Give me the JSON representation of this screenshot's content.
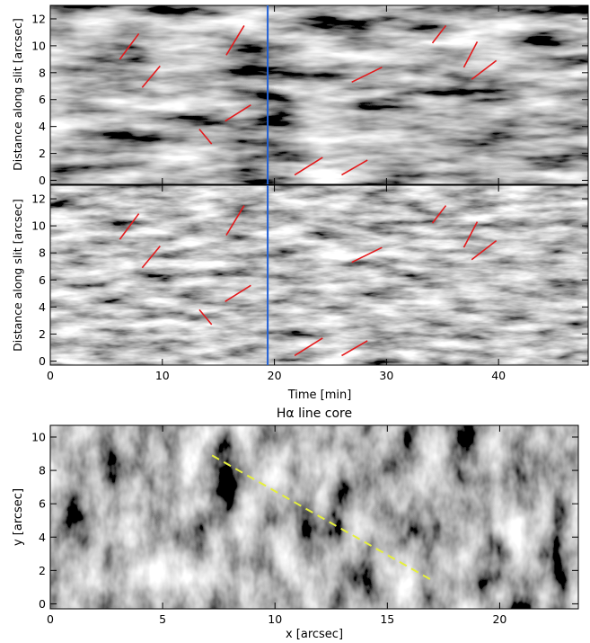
{
  "chart_data": [
    {
      "type": "heatmap",
      "panel": "top",
      "xlabel": "",
      "ylabel": "Distance along slit [arcsec]",
      "xlim": [
        0,
        48
      ],
      "ylim": [
        -0.3,
        13
      ],
      "xticks": [
        0,
        10,
        20,
        30,
        40
      ],
      "xticks_labeled": false,
      "yticks": [
        0,
        2,
        4,
        6,
        8,
        10,
        12
      ],
      "ytick_labels": [
        "0",
        "2",
        "4",
        "6",
        "8",
        "10",
        "12"
      ],
      "colormap": "grayscale",
      "marker_line": {
        "x": 19.4,
        "color": "#1f5fd6"
      },
      "red_segments": [
        [
          [
            6.2,
            9.0
          ],
          [
            7.9,
            10.9
          ]
        ],
        [
          [
            8.2,
            6.9
          ],
          [
            9.8,
            8.5
          ]
        ],
        [
          [
            15.7,
            9.3
          ],
          [
            17.3,
            11.5
          ]
        ],
        [
          [
            15.6,
            4.4
          ],
          [
            17.9,
            5.6
          ]
        ],
        [
          [
            13.3,
            3.8
          ],
          [
            14.4,
            2.7
          ]
        ],
        [
          [
            21.8,
            0.4
          ],
          [
            24.3,
            1.7
          ]
        ],
        [
          [
            26.0,
            0.4
          ],
          [
            28.3,
            1.5
          ]
        ],
        [
          [
            26.9,
            7.3
          ],
          [
            29.6,
            8.4
          ]
        ],
        [
          [
            34.1,
            10.2
          ],
          [
            35.3,
            11.5
          ]
        ],
        [
          [
            36.9,
            8.4
          ],
          [
            38.1,
            10.3
          ]
        ],
        [
          [
            37.6,
            7.5
          ],
          [
            39.8,
            8.9
          ]
        ]
      ]
    },
    {
      "type": "heatmap",
      "panel": "middle",
      "xlabel": "Time [min]",
      "ylabel": "Distance along slit [arcsec]",
      "xlim": [
        0,
        48
      ],
      "ylim": [
        -0.3,
        13
      ],
      "xticks": [
        0,
        10,
        20,
        30,
        40
      ],
      "xtick_labels": [
        "0",
        "10",
        "20",
        "30",
        "40"
      ],
      "yticks": [
        0,
        2,
        4,
        6,
        8,
        10,
        12
      ],
      "ytick_labels": [
        "0",
        "2",
        "4",
        "6",
        "8",
        "10",
        "12"
      ],
      "colormap": "grayscale",
      "marker_line": {
        "x": 19.4,
        "color": "#1f5fd6"
      },
      "red_segments": [
        [
          [
            6.2,
            9.0
          ],
          [
            7.9,
            10.9
          ]
        ],
        [
          [
            8.2,
            6.9
          ],
          [
            9.8,
            8.5
          ]
        ],
        [
          [
            15.7,
            9.3
          ],
          [
            17.3,
            11.5
          ]
        ],
        [
          [
            15.6,
            4.4
          ],
          [
            17.9,
            5.6
          ]
        ],
        [
          [
            13.3,
            3.8
          ],
          [
            14.4,
            2.7
          ]
        ],
        [
          [
            21.8,
            0.4
          ],
          [
            24.3,
            1.7
          ]
        ],
        [
          [
            26.0,
            0.4
          ],
          [
            28.3,
            1.5
          ]
        ],
        [
          [
            26.9,
            7.3
          ],
          [
            29.6,
            8.4
          ]
        ],
        [
          [
            34.1,
            10.2
          ],
          [
            35.3,
            11.5
          ]
        ],
        [
          [
            36.9,
            8.4
          ],
          [
            38.1,
            10.3
          ]
        ],
        [
          [
            37.6,
            7.5
          ],
          [
            39.8,
            8.9
          ]
        ]
      ]
    },
    {
      "type": "heatmap",
      "panel": "bottom",
      "title": "Hα line core",
      "xlabel": "x [arcsec]",
      "ylabel": "y [arcsec]",
      "xlim": [
        0,
        23.5
      ],
      "ylim": [
        -0.3,
        10.7
      ],
      "xticks": [
        0,
        5,
        10,
        15,
        20
      ],
      "xtick_labels": [
        "0",
        "5",
        "10",
        "15",
        "20"
      ],
      "yticks": [
        0,
        2,
        4,
        6,
        8,
        10
      ],
      "ytick_labels": [
        "0",
        "2",
        "4",
        "6",
        "8",
        "10"
      ],
      "colormap": "grayscale",
      "slit_line": {
        "from": [
          7.2,
          8.9
        ],
        "to": [
          17.0,
          1.4
        ],
        "color": "#e6f03c",
        "style": "dashed"
      }
    }
  ]
}
